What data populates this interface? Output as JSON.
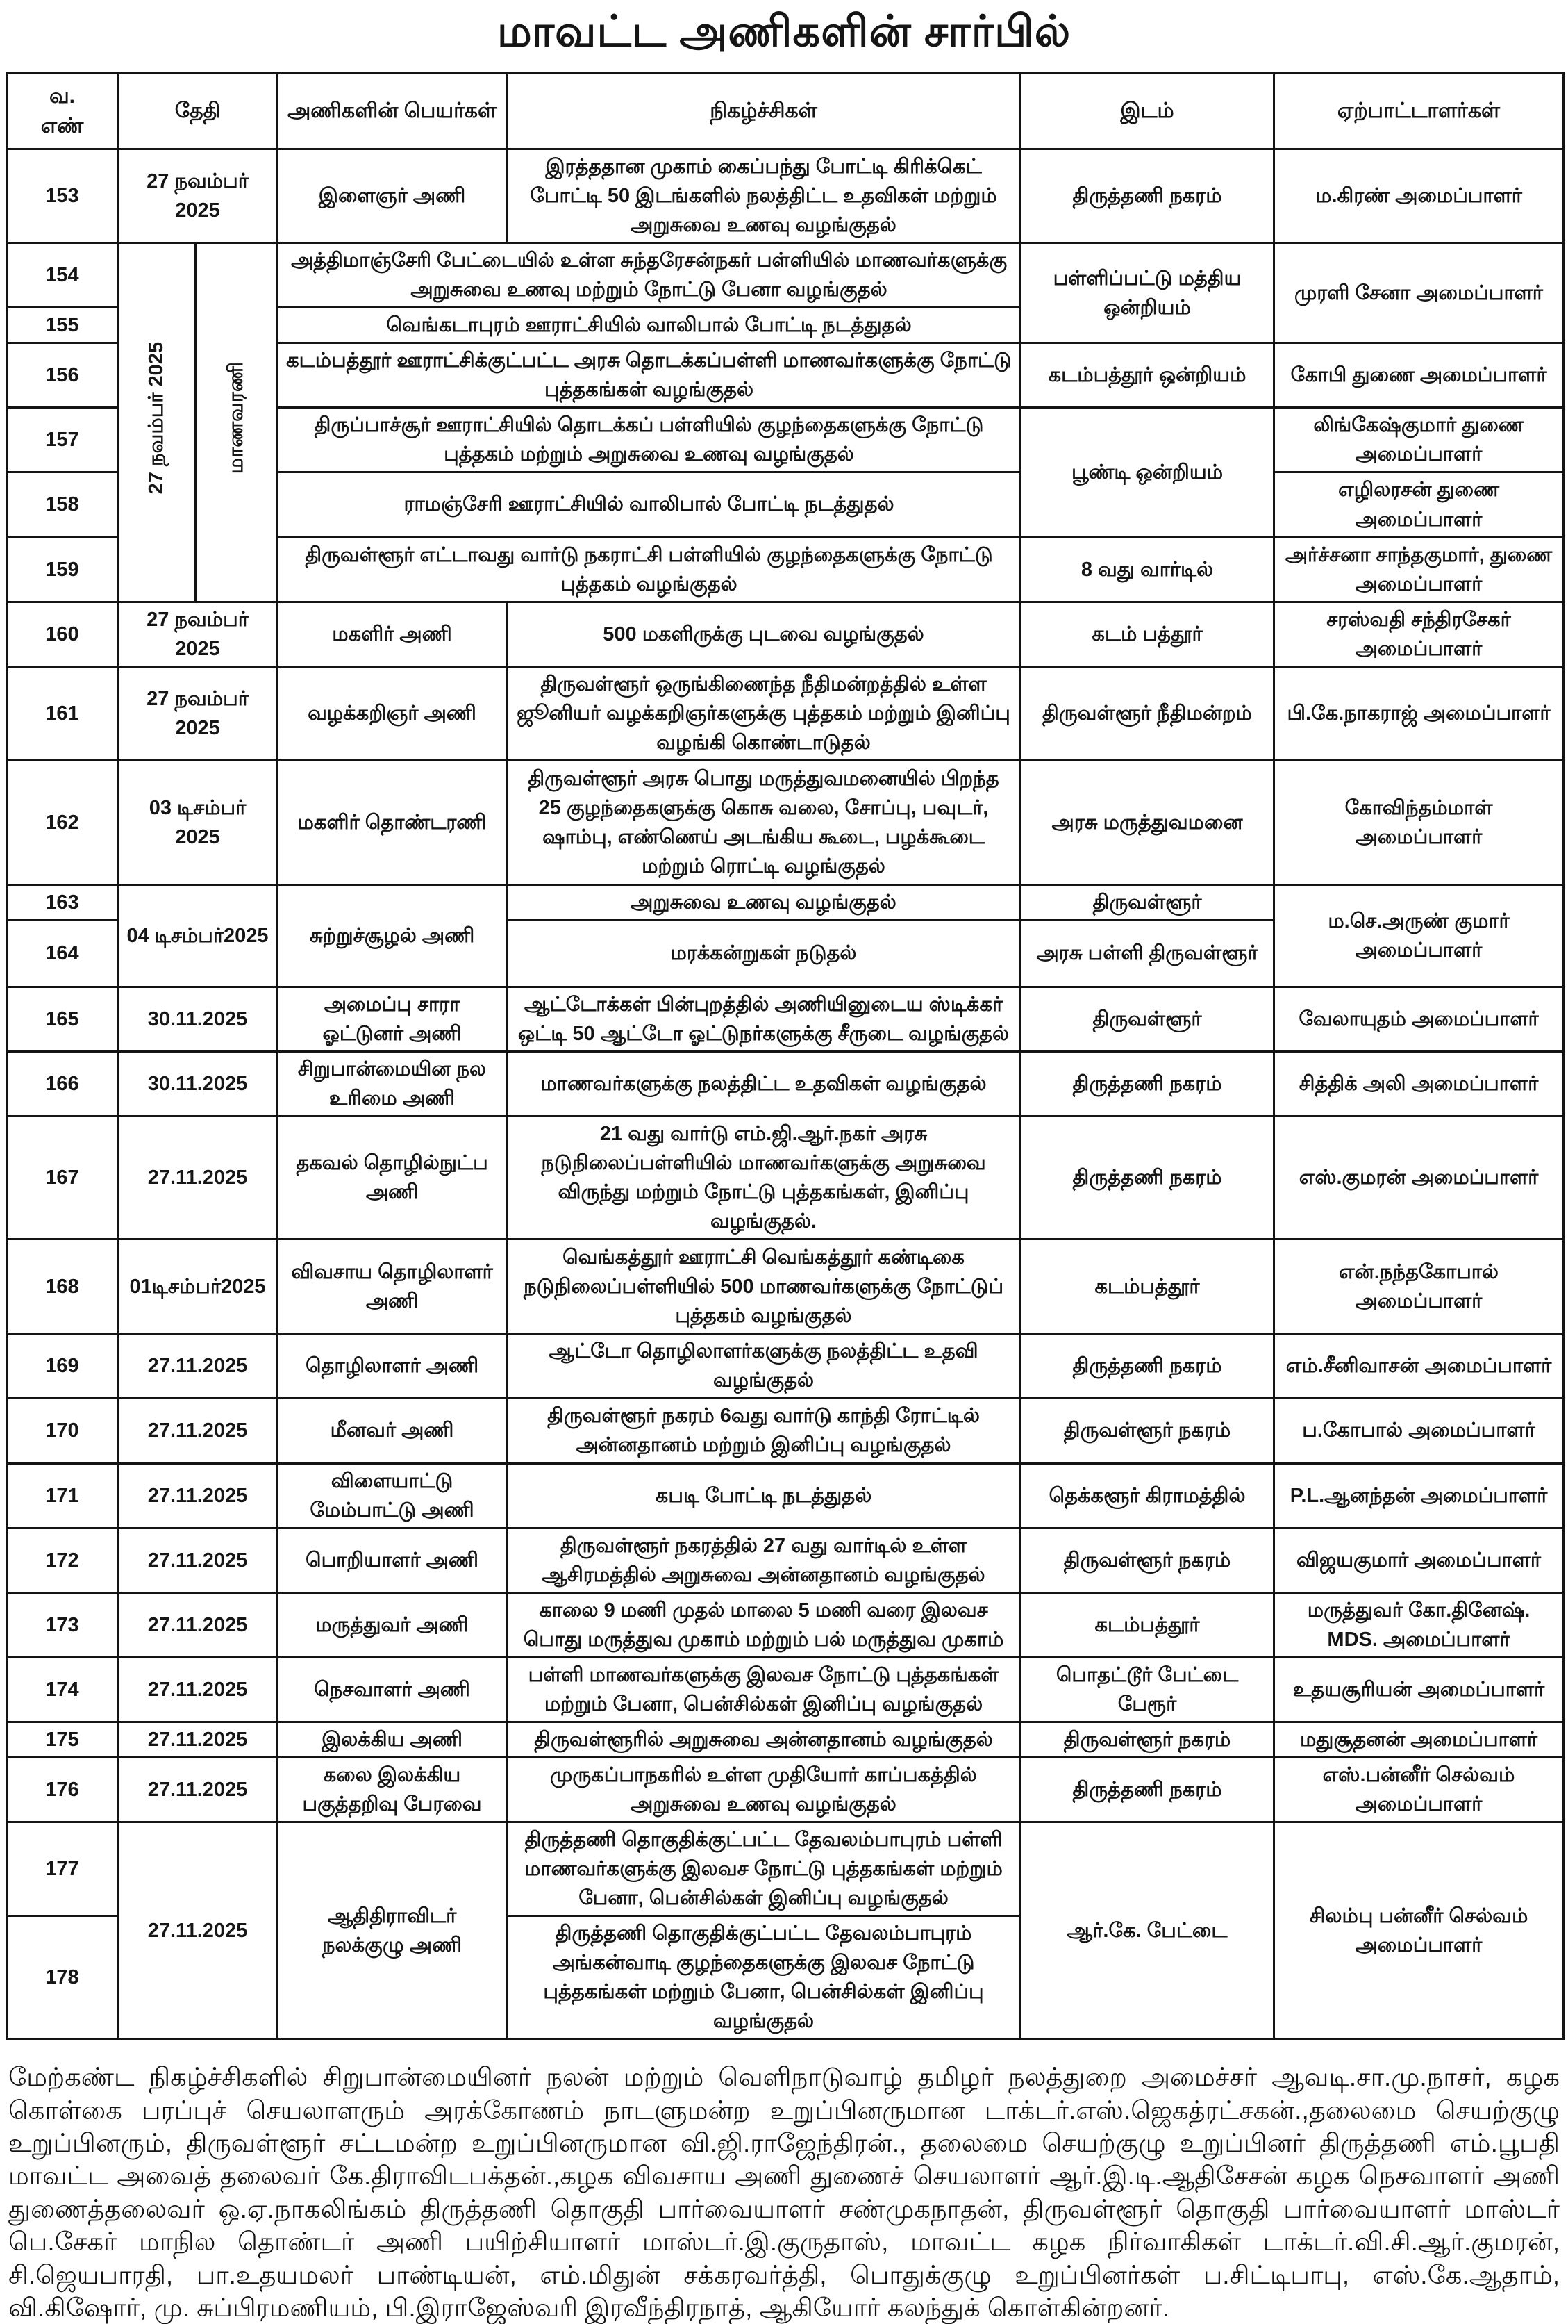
{
  "title": "மாவட்ட அணிகளின் சார்பில்",
  "table": {
    "header_cells": [
      {
        "t": "வ.\nஎண்",
        "k": "serial"
      },
      {
        "t": "தேதி",
        "k": "date",
        "cs": 2
      },
      {
        "t": "அணிகளின்  பெயர்கள்",
        "k": "team"
      },
      {
        "t": "நிகழ்ச்சிகள்",
        "k": "event"
      },
      {
        "t": "இடம்",
        "k": "place"
      },
      {
        "t": "ஏற்பாட்டாளர்கள்",
        "k": "organizer"
      }
    ],
    "rows": [
      {
        "h": 133,
        "cells": [
          {
            "t": "153",
            "k": "serial"
          },
          {
            "t": "27 நவம்பர் 2025",
            "k": "date",
            "cs": 2
          },
          {
            "t": "இளைஞர் அணி",
            "k": "team"
          },
          {
            "t": "இரத்ததான முகாம் கைப்பந்து போட்டி கிரிக்கெட் போட்டி 50 இடங்களில் நலத்திட்ட உதவிகள் மற்றும் அறுசுவை உணவு வழங்குதல்",
            "k": "event"
          },
          {
            "t": "திருத்தணி நகரம்",
            "k": "place"
          },
          {
            "t": "ம.கிரண் அமைப்பாளர்",
            "k": "organizer"
          }
        ]
      },
      {
        "h": 92,
        "cells": [
          {
            "t": "154",
            "k": "serial"
          },
          {
            "t": "27 நவம்பர்  2025",
            "k": "date",
            "rs": 6,
            "rot": true
          },
          {
            "t": "மாணவரணி",
            "k": "team",
            "rs": 6,
            "rot": true
          },
          {
            "t": "அத்திமாஞ்சேரி பேட்டையில் உள்ள சுந்தரேசன்நகர் பள்ளியில் மாணவர்களுக்கு அறுசுவை உணவு மற்றும் நோட்டு பேனா வழங்குதல்",
            "k": "event",
            "cs": 2
          },
          {
            "t": "பள்ளிப்பட்டு மத்திய ஒன்றியம்",
            "k": "place",
            "rs": 2
          },
          {
            "t": "முரளி சேனா  அமைப்பாளர்",
            "k": "organizer",
            "rs": 2
          }
        ]
      },
      {
        "h": 48,
        "cells": [
          {
            "t": "155",
            "k": "serial"
          },
          {
            "t": "வெங்கடாபுரம் ஊராட்சியில் வாலிபால் போட்டி நடத்துதல்",
            "k": "event",
            "cs": 2
          }
        ]
      },
      {
        "h": 91,
        "cells": [
          {
            "t": "156",
            "k": "serial"
          },
          {
            "t": "கடம்பத்தூர் ஊராட்சிக்குட்பட்ட அரசு தொடக்கப்பள்ளி மாணவர்களுக்கு நோட்டு புத்தகங்கள் வழங்குதல்",
            "k": "event",
            "cs": 2
          },
          {
            "t": "கடம்பத்தூர் ஒன்றியம்",
            "k": "place"
          },
          {
            "t": "கோபி துணை அமைப்பாளர்",
            "k": "organizer"
          }
        ]
      },
      {
        "h": 90,
        "cells": [
          {
            "t": "157",
            "k": "serial"
          },
          {
            "t": "திருப்பாச்சூர் ஊராட்சியில் தொடக்கப் பள்ளியில் குழந்தைகளுக்கு நோட்டு புத்தகம் மற்றும் அறுசுவை உணவு வழங்குதல்",
            "k": "event",
            "cs": 2
          },
          {
            "t": "பூண்டி ஒன்றியம்",
            "k": "place",
            "rs": 2
          },
          {
            "t": "லிங்கேஷ்குமார் துணை அமைப்பாளர்",
            "k": "organizer"
          }
        ]
      },
      {
        "h": 88,
        "cells": [
          {
            "t": "158",
            "k": "serial"
          },
          {
            "t": "ராமஞ்சேரி ஊராட்சியில் வாலிபால் போட்டி நடத்துதல்",
            "k": "event",
            "cs": 2
          },
          {
            "t": "எழிலரசன் துணை அமைப்பாளர்",
            "k": "organizer"
          }
        ]
      },
      {
        "h": 92,
        "cells": [
          {
            "t": "159",
            "k": "serial"
          },
          {
            "t": "திருவள்ளூர் எட்டாவது வார்டு நகராட்சி பள்ளியில் குழந்தைகளுக்கு நோட்டு புத்தகம் வழங்குதல்",
            "k": "event",
            "cs": 2
          },
          {
            "t": "8 வது வார்டில்",
            "k": "place"
          },
          {
            "t": "அர்ச்சனா சாந்தகுமார், துணை அமைப்பாளர்",
            "k": "organizer"
          }
        ]
      },
      {
        "h": 87,
        "cells": [
          {
            "t": "160",
            "k": "serial"
          },
          {
            "t": "27 நவம்பர் 2025",
            "k": "date",
            "cs": 2
          },
          {
            "t": "மகளிர் அணி",
            "k": "team"
          },
          {
            "t": "500 மகளிருக்கு புடவை வழங்குதல்",
            "k": "event"
          },
          {
            "t": "கடம் பத்தூர்",
            "k": "place"
          },
          {
            "t": "சரஸ்வதி சந்திரசேகர் அமைப்பாளர்",
            "k": "organizer"
          }
        ]
      },
      {
        "h": 131,
        "cells": [
          {
            "t": "161",
            "k": "serial"
          },
          {
            "t": "27 நவம்பர் 2025",
            "k": "date",
            "cs": 2
          },
          {
            "t": "வழக்கறிஞர் அணி",
            "k": "team"
          },
          {
            "t": "திருவள்ளூர் ஒருங்கிணைந்த நீதிமன்றத்தில் உள்ள ஜூனியர் வழக்கறிஞர்களுக்கு புத்தகம் மற்றும் இனிப்பு வழங்கி கொண்டாடுதல்",
            "k": "event"
          },
          {
            "t": "திருவள்ளூர் நீதிமன்றம்",
            "k": "place"
          },
          {
            "t": "பி.கே.நாகராஜ் அமைப்பாளர்",
            "k": "organizer"
          }
        ]
      },
      {
        "h": 179,
        "cells": [
          {
            "t": "162",
            "k": "serial"
          },
          {
            "t": "03 டிசம்பர் 2025",
            "k": "date",
            "cs": 2
          },
          {
            "t": "மகளிர் தொண்டரணி",
            "k": "team"
          },
          {
            "t": "திருவள்ளூர் அரசு பொது மருத்துவமனையில் பிறந்த 25 குழந்தைகளுக்கு கொசு வலை, சோப்பு, பவுடர், ஷாம்பு, எண்ணெய் அடங்கிய கூடை, பழக்கூடை மற்றும் ரொட்டி வழங்குதல்",
            "k": "event"
          },
          {
            "t": "அரசு மருத்துவமனை",
            "k": "place"
          },
          {
            "t": "கோவிந்தம்மாள் அமைப்பாளர்",
            "k": "organizer"
          }
        ]
      },
      {
        "h": 44,
        "cells": [
          {
            "t": "163",
            "k": "serial"
          },
          {
            "t": "04 டிசம்பர்2025",
            "k": "date",
            "cs": 2,
            "rs": 2
          },
          {
            "t": "சுற்றுச்சூழல் அணி",
            "k": "team",
            "rs": 2
          },
          {
            "t": "அறுசுவை உணவு வழங்குதல்",
            "k": "event"
          },
          {
            "t": "திருவள்ளூர்",
            "k": "place"
          },
          {
            "t": "ம.செ.அருண் குமார் அமைப்பாளர்",
            "k": "organizer",
            "rs": 2
          }
        ]
      },
      {
        "h": 96,
        "cells": [
          {
            "t": "164",
            "k": "serial"
          },
          {
            "t": "மரக்கன்றுகள் நடுதல்",
            "k": "event"
          },
          {
            "t": "அரசு பள்ளி திருவள்ளூர்",
            "k": "place"
          }
        ]
      },
      {
        "h": 88,
        "cells": [
          {
            "t": "165",
            "k": "serial"
          },
          {
            "t": "30.11.2025",
            "k": "date",
            "cs": 2
          },
          {
            "t": "அமைப்பு சாரா ஓட்டுனர் அணி",
            "k": "team"
          },
          {
            "t": "ஆட்டோக்கள் பின்புறத்தில் அணியினுடைய ஸ்டிக்கர் ஒட்டி 50 ஆட்டோ ஓட்டுநர்களுக்கு சீருடை வழங்குதல்",
            "k": "event"
          },
          {
            "t": "திருவள்ளூர்",
            "k": "place"
          },
          {
            "t": "வேலாயுதம் அமைப்பாளர்",
            "k": "organizer"
          }
        ]
      },
      {
        "h": 89,
        "cells": [
          {
            "t": "166",
            "k": "serial"
          },
          {
            "t": "30.11.2025",
            "k": "date",
            "cs": 2
          },
          {
            "t": "சிறுபான்மையின நல உரிமை அணி",
            "k": "team"
          },
          {
            "t": "மாணவர்களுக்கு நலத்திட்ட உதவிகள் வழங்குதல்",
            "k": "event"
          },
          {
            "t": "திருத்தணி நகரம்",
            "k": "place"
          },
          {
            "t": "சித்திக் அலி அமைப்பாளர்",
            "k": "organizer"
          }
        ]
      },
      {
        "h": 132,
        "cells": [
          {
            "t": "167",
            "k": "serial"
          },
          {
            "t": "27.11.2025",
            "k": "date",
            "cs": 2
          },
          {
            "t": "தகவல் தொழில்நுட்ப அணி",
            "k": "team"
          },
          {
            "t": "21 வது வார்டு எம்.ஜி.ஆர்.நகர் அரசு நடுநிலைப்பள்ளியில் மாணவர்களுக்கு அறுசுவை விருந்து மற்றும் நோட்டு புத்தகங்கள், இனிப்பு வழங்குதல்.",
            "k": "event"
          },
          {
            "t": "திருத்தணி நகரம்",
            "k": "place"
          },
          {
            "t": "எஸ்.குமரன் அமைப்பாளர்",
            "k": "organizer"
          }
        ]
      },
      {
        "h": 136,
        "cells": [
          {
            "t": "168",
            "k": "serial"
          },
          {
            "t": "01டிசம்பர்2025",
            "k": "date",
            "cs": 2
          },
          {
            "t": "விவசாய தொழிலாளர் அணி",
            "k": "team"
          },
          {
            "t": "வெங்கத்தூர் ஊராட்சி வெங்கத்தூர் கண்டிகை நடுநிலைப்பள்ளியில் 500 மாணவர்களுக்கு நோட்டுப் புத்தகம் வழங்குதல்",
            "k": "event"
          },
          {
            "t": "கடம்பத்தூர்",
            "k": "place"
          },
          {
            "t": "என்.நந்தகோபால் அமைப்பாளர்",
            "k": "organizer"
          }
        ]
      },
      {
        "h": 85,
        "cells": [
          {
            "t": "169",
            "k": "serial"
          },
          {
            "t": "27.11.2025",
            "k": "date",
            "cs": 2
          },
          {
            "t": "தொழிலாளர் அணி",
            "k": "team"
          },
          {
            "t": "ஆட்டோ தொழிலாளர்களுக்கு நலத்திட்ட உதவி வழங்குதல்",
            "k": "event"
          },
          {
            "t": "திருத்தணி நகரம்",
            "k": "place"
          },
          {
            "t": "எம்.சீனிவாசன் அமைப்பாளர்",
            "k": "organizer"
          }
        ]
      },
      {
        "h": 92,
        "cells": [
          {
            "t": "170",
            "k": "serial"
          },
          {
            "t": "27.11.2025",
            "k": "date",
            "cs": 2
          },
          {
            "t": "மீனவர் அணி",
            "k": "team"
          },
          {
            "t": "திருவள்ளூர் நகரம் 6வது வார்டு காந்தி ரோட்டில் அன்னதானம் மற்றும் இனிப்பு வழங்குதல்",
            "k": "event"
          },
          {
            "t": "திருவள்ளூர் நகரம்",
            "k": "place"
          },
          {
            "t": "ப.கோபால் அமைப்பாளர்",
            "k": "organizer"
          }
        ]
      },
      {
        "h": 88,
        "cells": [
          {
            "t": "171",
            "k": "serial"
          },
          {
            "t": "27.11.2025",
            "k": "date",
            "cs": 2
          },
          {
            "t": "விளையாட்டு மேம்பாட்டு அணி",
            "k": "team"
          },
          {
            "t": "கபடி போட்டி நடத்துதல்",
            "k": "event"
          },
          {
            "t": "தெக்களூர் கிராமத்தில்",
            "k": "place"
          },
          {
            "t": "P.L.ஆனந்தன் அமைப்பாளர்",
            "k": "organizer"
          }
        ]
      },
      {
        "h": 90,
        "cells": [
          {
            "t": "172",
            "k": "serial"
          },
          {
            "t": "27.11.2025",
            "k": "date",
            "cs": 2
          },
          {
            "t": "பொறியாளர் அணி",
            "k": "team"
          },
          {
            "t": "திருவள்ளூர் நகரத்தில் 27 வது வார்டில் உள்ள ஆசிரமத்தில் அறுசுவை அன்னதானம் வழங்குதல்",
            "k": "event"
          },
          {
            "t": "திருவள்ளூர் நகரம்",
            "k": "place"
          },
          {
            "t": "விஜயகுமார் அமைப்பாளர்",
            "k": "organizer"
          }
        ]
      },
      {
        "h": 90,
        "cells": [
          {
            "t": "173",
            "k": "serial"
          },
          {
            "t": "27.11.2025",
            "k": "date",
            "cs": 2
          },
          {
            "t": "மருத்துவர் அணி",
            "k": "team"
          },
          {
            "t": "காலை 9 மணி முதல் மாலை 5 மணி வரை இலவச பொது மருத்துவ முகாம் மற்றும் பல் மருத்துவ முகாம்",
            "k": "event"
          },
          {
            "t": "கடம்பத்தூர்",
            "k": "place"
          },
          {
            "t": "மருத்துவர் கோ.தினேஷ். MDS. அமைப்பாளர்",
            "k": "organizer"
          }
        ]
      },
      {
        "h": 89,
        "cells": [
          {
            "t": "174",
            "k": "serial"
          },
          {
            "t": "27.11.2025",
            "k": "date",
            "cs": 2
          },
          {
            "t": "நெசவாளர் அணி",
            "k": "team"
          },
          {
            "t": "பள்ளி மாணவர்களுக்கு இலவச நோட்டு புத்தகங்கள் மற்றும் பேனா, பென்சில்கள் இனிப்பு வழங்குதல்",
            "k": "event"
          },
          {
            "t": "பொதட்டூர் பேட்டை பேரூர்",
            "k": "place"
          },
          {
            "t": "உதயசூரியன்  அமைப்பாளர்",
            "k": "organizer"
          }
        ]
      },
      {
        "h": 46,
        "cells": [
          {
            "t": "175",
            "k": "serial"
          },
          {
            "t": "27.11.2025",
            "k": "date",
            "cs": 2
          },
          {
            "t": "இலக்கிய அணி",
            "k": "team"
          },
          {
            "t": "திருவள்ளூரில் அறுசுவை அன்னதானம் வழங்குதல்",
            "k": "event"
          },
          {
            "t": "திருவள்ளூர் நகரம்",
            "k": "place"
          },
          {
            "t": "மதுசூதனன் அமைப்பாளர்",
            "k": "organizer"
          }
        ]
      },
      {
        "h": 91,
        "cells": [
          {
            "t": "176",
            "k": "serial"
          },
          {
            "t": "27.11.2025",
            "k": "date",
            "cs": 2
          },
          {
            "t": "கலை இலக்கிய பகுத்தறிவு பேரவை",
            "k": "team"
          },
          {
            "t": "முருகப்பாநகரில் உள்ள முதியோர் காப்பகத்தில் அறுசுவை உணவு வழங்குதல்",
            "k": "event"
          },
          {
            "t": "திருத்தணி நகரம்",
            "k": "place"
          },
          {
            "t": "எஸ்.பன்னீர் செல்வம் அமைப்பாளர்",
            "k": "organizer"
          }
        ]
      },
      {
        "h": 134,
        "cells": [
          {
            "t": "177",
            "k": "serial"
          },
          {
            "t": "27.11.2025",
            "k": "date",
            "cs": 2,
            "rs": 2
          },
          {
            "t": "ஆதிதிராவிடர் நலக்குழு அணி",
            "k": "team",
            "rs": 2
          },
          {
            "t": "திருத்தணி தொகுதிக்குட்பட்ட தேவலம்பாபுரம் பள்ளி மாணவர்களுக்கு இலவச நோட்டு புத்தகங்கள் மற்றும் பேனா, பென்சில்கள் இனிப்பு வழங்குதல்",
            "k": "event"
          },
          {
            "t": "ஆர்.கே. பேட்டை",
            "k": "place",
            "rs": 2
          },
          {
            "t": "சிலம்பு பன்னீர் செல்வம் அமைப்பாளர்",
            "k": "organizer",
            "rs": 2
          }
        ]
      },
      {
        "h": 133,
        "cells": [
          {
            "t": "178",
            "k": "serial"
          },
          {
            "t": "திருத்தணி தொகுதிக்குட்பட்ட தேவலம்பாபுரம் அங்கன்வாடி குழந்தைகளுக்கு இலவச நோட்டு புத்தகங்கள் மற்றும் பேனா, பென்சில்கள் இனிப்பு வழங்குதல்",
            "k": "event"
          }
        ]
      }
    ]
  },
  "footer": {
    "text": "மேற்கண்ட நிகழ்ச்சிகளில் சிறுபான்மையினர் நலன் மற்றும் வெளிநாடுவாழ் தமிழர் நலத்துறை அமைச்சர் ஆவடி.சா.மு.நாசர், கழக கொள்கை பரப்புச் செயலாளரும் அரக்கோணம் நாடளுமன்ற உறுப்பினருமான டாக்டர்.எஸ்.ஜெகத்ரட்சகன்.,தலைமை செயற்குழு உறுப்பினரும், திருவள்ளூர் சட்டமன்ற உறுப்பினருமான வி.ஜி.ராஜேந்திரன்., தலைமை செயற்குழு உறுப்பினர் திருத்தணி எம்.பூபதி மாவட்ட அவைத் தலைவர் கே.திராவிடபக்தன்.,கழக விவசாய அணி துணைச் செயலாளர் ஆர்.இ.டி.ஆதிசேசன் கழக நெசவாளர் அணி துணைத்தலைவர் ஒ.ஏ.நாகலிங்கம் திருத்தணி தொகுதி பார்வையாளர் சண்முகநாதன், திருவள்ளூர் தொகுதி பார்வையாளர் மாஸ்டர் பெ.சேகர் மாநில தொண்டர் அணி பயிற்சியாளர் மாஸ்டர்.இ.குருதாஸ், மாவட்ட கழக நிர்வாகிகள் டாக்டர்.வி.சி.ஆர்.குமரன், சி.ஜெயபாரதி, பா.உதயமலர் பாண்டியன், எம்.மிதுன் சக்கரவர்த்தி, பொதுக்குழு உறுப்பினர்கள் ப.சிட்டிபாபு, எஸ்.கே.ஆதாம், வி.கிஷோர், மு. சுப்பிரமணியம், பி.இராஜேஸ்வரி இரவீந்திரநாத், ஆகியோர் கலந்துக் கொள்கின்றனர்."
  }
}
